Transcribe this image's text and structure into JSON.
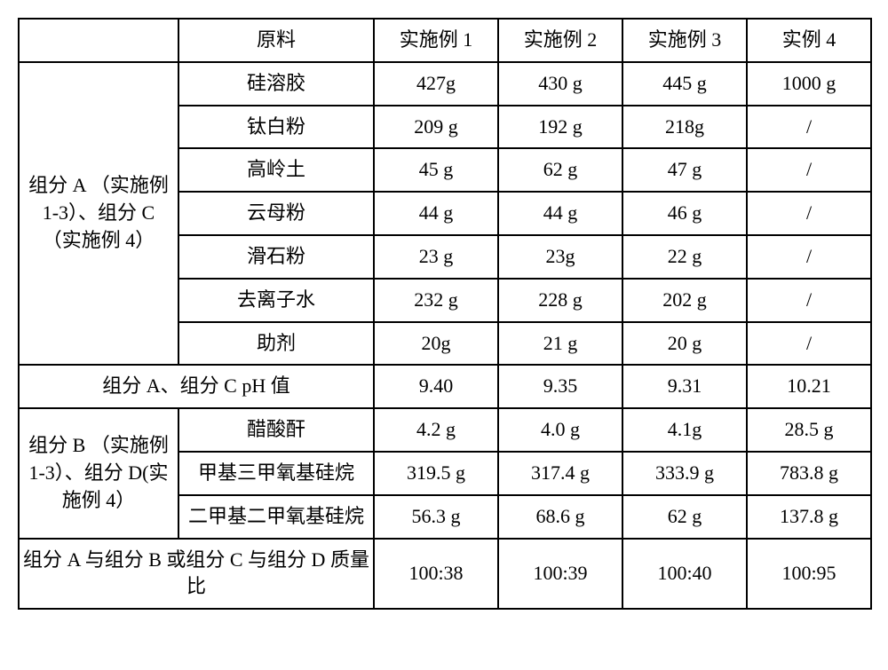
{
  "headers": {
    "c0": "",
    "c1": "原料",
    "c2": "实施例 1",
    "c3": "实施例 2",
    "c4": "实施例 3",
    "c5": "实例 4"
  },
  "groupA_label": "组分 A （实施例 1-3）、组分 C （实施例 4）",
  "groupA": {
    "r0": {
      "name": "硅溶胶",
      "v1": "427g",
      "v2": "430 g",
      "v3": "445 g",
      "v4": "1000 g"
    },
    "r1": {
      "name": "钛白粉",
      "v1": "209 g",
      "v2": "192 g",
      "v3": "218g",
      "v4": "/"
    },
    "r2": {
      "name": "高岭土",
      "v1": "45 g",
      "v2": "62 g",
      "v3": "47 g",
      "v4": "/"
    },
    "r3": {
      "name": "云母粉",
      "v1": "44 g",
      "v2": "44 g",
      "v3": "46 g",
      "v4": "/"
    },
    "r4": {
      "name": "滑石粉",
      "v1": "23 g",
      "v2": "23g",
      "v3": "22 g",
      "v4": "/"
    },
    "r5": {
      "name": "去离子水",
      "v1": "232 g",
      "v2": "228 g",
      "v3": "202 g",
      "v4": "/"
    },
    "r6": {
      "name": "助剂",
      "v1": "20g",
      "v2": "21 g",
      "v3": "20 g",
      "v4": "/"
    }
  },
  "ph_row": {
    "label": "组分 A、组分 C   pH 值",
    "v1": "9.40",
    "v2": "9.35",
    "v3": "9.31",
    "v4": "10.21"
  },
  "groupB_label": "组分 B （实施例 1-3）、组分 D(实施例 4）",
  "groupB": {
    "r0": {
      "name": "醋酸酐",
      "v1": "4.2 g",
      "v2": "4.0 g",
      "v3": "4.1g",
      "v4": "28.5 g"
    },
    "r1": {
      "name": "甲基三甲氧基硅烷",
      "v1": "319.5 g",
      "v2": "317.4 g",
      "v3": "333.9 g",
      "v4": "783.8 g"
    },
    "r2": {
      "name": "二甲基二甲氧基硅烷",
      "v1": "56.3 g",
      "v2": "68.6 g",
      "v3": "62 g",
      "v4": "137.8 g"
    }
  },
  "ratio_row": {
    "label": "组分 A 与组分 B 或组分 C 与组分 D 质量比",
    "v1": "100:38",
    "v2": "100:39",
    "v3": "100:40",
    "v4": "100:95"
  }
}
